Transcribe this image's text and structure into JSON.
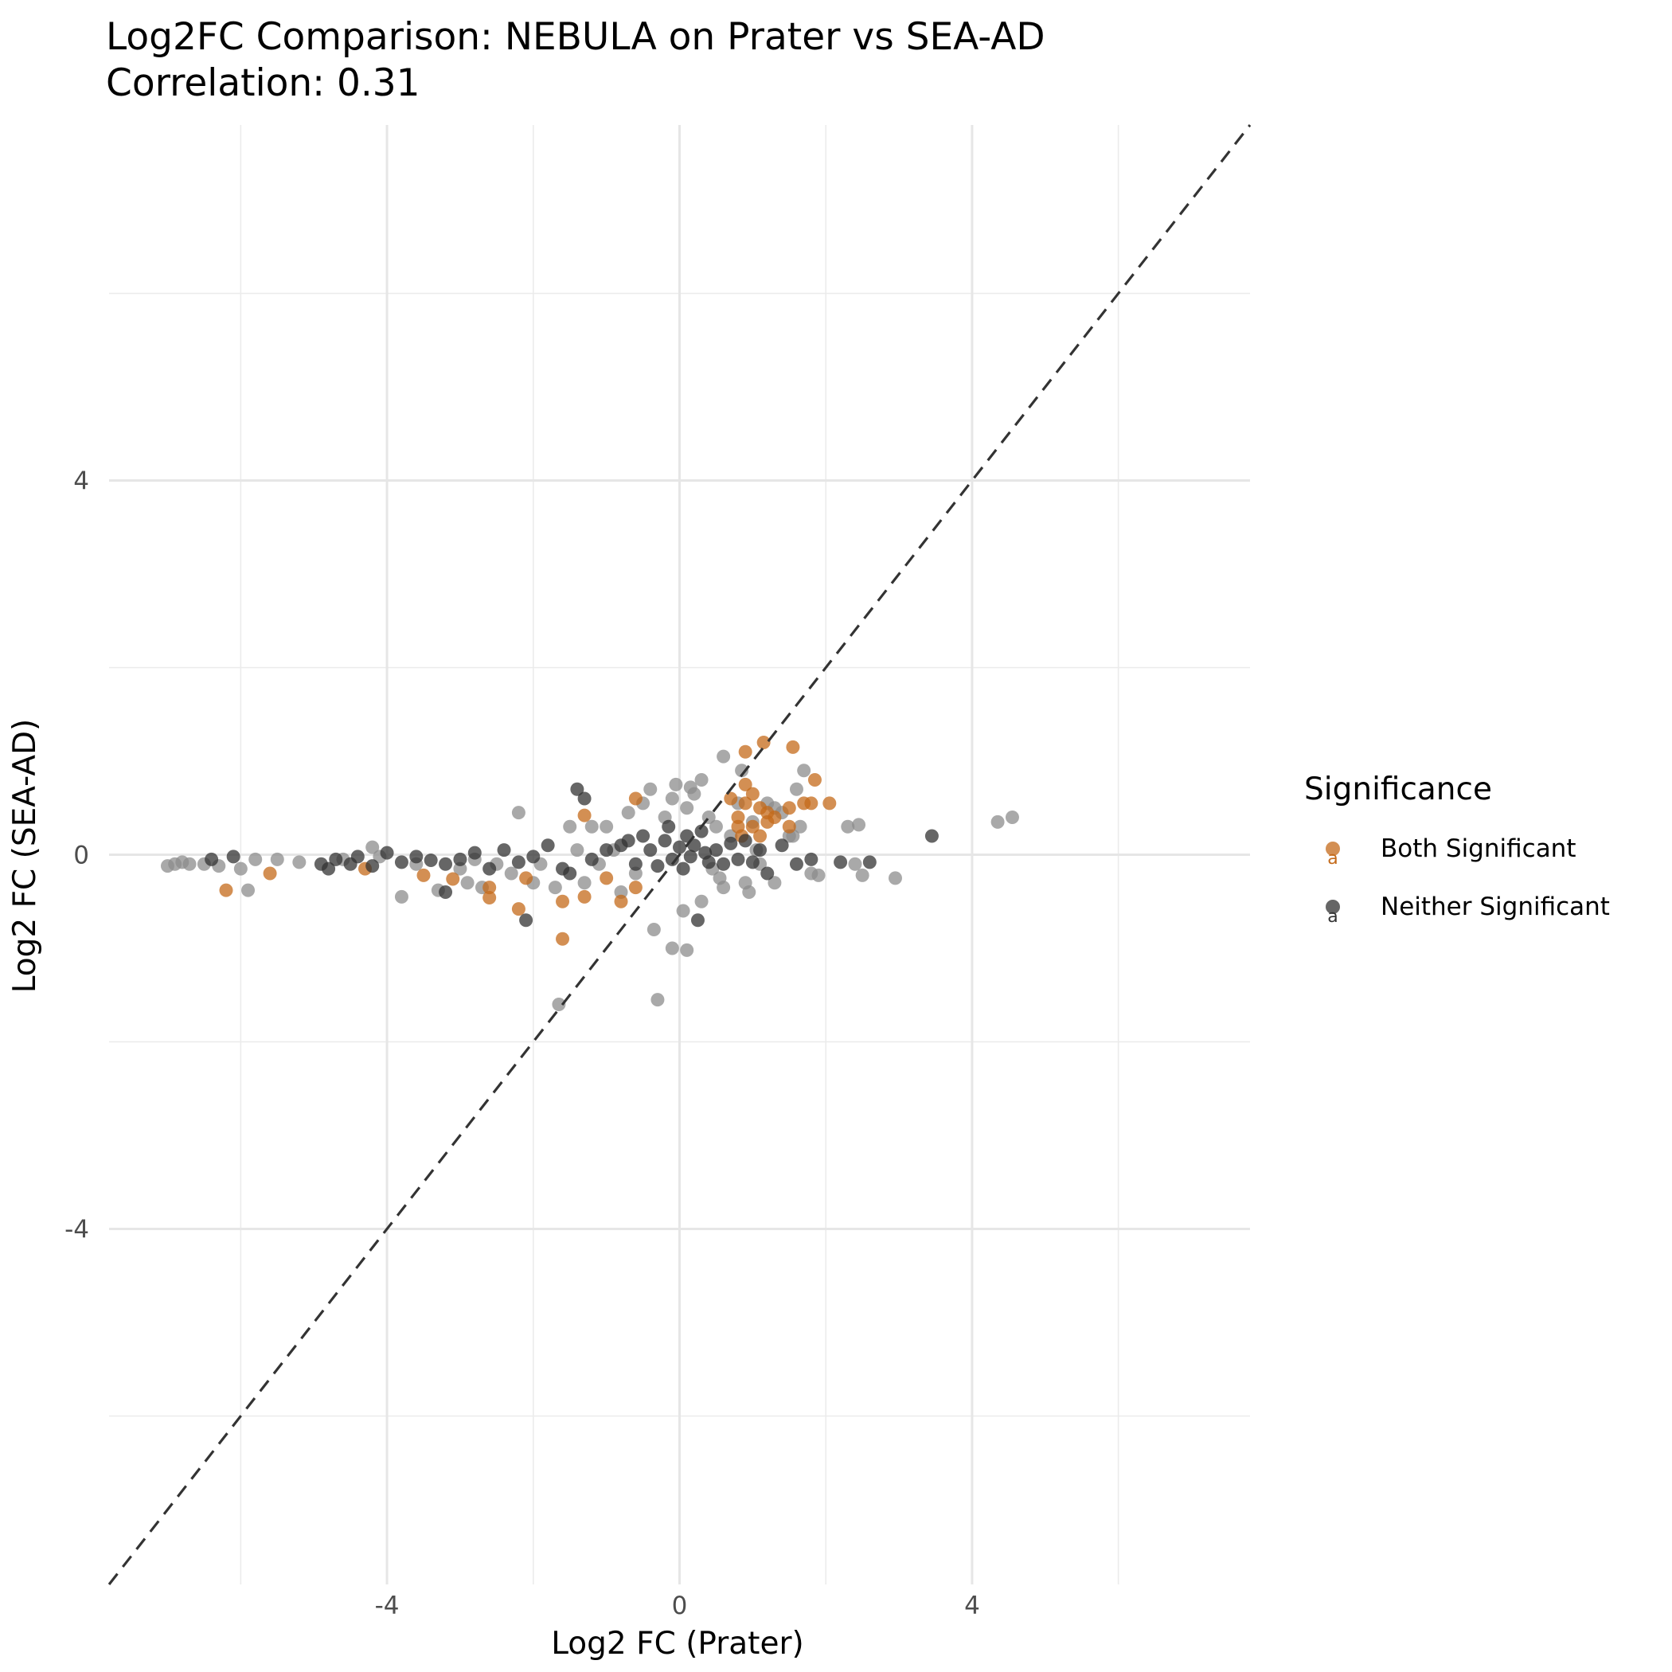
{
  "chart_data": {
    "type": "scatter",
    "title": "Log2FC Comparison: NEBULA on Prater vs SEA-AD",
    "subtitle": "Correlation: 0.31",
    "xlabel": "Log2 FC (Prater)",
    "ylabel": "Log2 FC (SEA-AD)",
    "xlim": [
      -7.8,
      7.8
    ],
    "ylim": [
      -7.8,
      7.8
    ],
    "x_ticks": [
      -4,
      0,
      4
    ],
    "x_tick_labels": [
      "-4",
      "0",
      "4"
    ],
    "y_ticks": [
      -4,
      0,
      4
    ],
    "y_tick_labels": [
      "-4",
      "0",
      "4"
    ],
    "grid": true,
    "reference_line": "y = x (dashed)",
    "legend": {
      "title": "Significance",
      "placement": "right",
      "entries": [
        {
          "label": "Both Significant",
          "color": "#c46a1a"
        },
        {
          "label": "Neither Significant",
          "color": "#333333"
        }
      ]
    },
    "series": [
      {
        "name": "Both Significant",
        "color": "#c46a1a",
        "points": [
          [
            -6.2,
            -0.38
          ],
          [
            -5.6,
            -0.2
          ],
          [
            -4.3,
            -0.15
          ],
          [
            -3.5,
            -0.22
          ],
          [
            -3.1,
            -0.26
          ],
          [
            -2.6,
            -0.46
          ],
          [
            -2.6,
            -0.35
          ],
          [
            -2.2,
            -0.58
          ],
          [
            -2.1,
            -0.25
          ],
          [
            -1.6,
            -0.9
          ],
          [
            -1.6,
            -0.5
          ],
          [
            -1.3,
            -0.45
          ],
          [
            -1.3,
            0.42
          ],
          [
            -1.0,
            -0.25
          ],
          [
            -0.8,
            -0.5
          ],
          [
            -0.6,
            0.6
          ],
          [
            -0.6,
            -0.35
          ],
          [
            0.7,
            0.6
          ],
          [
            0.8,
            0.4
          ],
          [
            0.8,
            0.3
          ],
          [
            0.85,
            0.2
          ],
          [
            0.9,
            0.75
          ],
          [
            0.9,
            0.55
          ],
          [
            0.9,
            1.1
          ],
          [
            1.0,
            0.65
          ],
          [
            1.0,
            0.3
          ],
          [
            1.1,
            0.5
          ],
          [
            1.1,
            0.2
          ],
          [
            1.15,
            1.2
          ],
          [
            1.2,
            0.35
          ],
          [
            1.2,
            0.45
          ],
          [
            1.3,
            0.4
          ],
          [
            1.5,
            0.3
          ],
          [
            1.5,
            0.5
          ],
          [
            1.55,
            1.15
          ],
          [
            1.7,
            0.55
          ],
          [
            1.8,
            0.55
          ],
          [
            1.85,
            0.8
          ],
          [
            2.05,
            0.55
          ]
        ]
      },
      {
        "name": "Neither Significant",
        "color": "#333333",
        "points": [
          [
            -6.4,
            -0.05
          ],
          [
            -6.1,
            -0.02
          ],
          [
            -4.9,
            -0.1
          ],
          [
            -4.8,
            -0.15
          ],
          [
            -4.7,
            -0.05
          ],
          [
            -4.5,
            -0.1
          ],
          [
            -4.4,
            -0.02
          ],
          [
            -4.2,
            -0.12
          ],
          [
            -4.0,
            0.02
          ],
          [
            -3.8,
            -0.08
          ],
          [
            -3.6,
            -0.02
          ],
          [
            -3.4,
            -0.06
          ],
          [
            -3.2,
            -0.1
          ],
          [
            -3.0,
            -0.05
          ],
          [
            -2.8,
            0.02
          ],
          [
            -2.6,
            -0.15
          ],
          [
            -2.4,
            0.05
          ],
          [
            -2.2,
            -0.08
          ],
          [
            -2.0,
            -0.02
          ],
          [
            -1.8,
            0.1
          ],
          [
            -1.6,
            -0.15
          ],
          [
            -1.4,
            0.7
          ],
          [
            -1.3,
            0.6
          ],
          [
            -1.2,
            -0.05
          ],
          [
            -1.0,
            0.05
          ],
          [
            -0.8,
            0.1
          ],
          [
            -0.6,
            -0.1
          ],
          [
            -0.5,
            0.2
          ],
          [
            -0.4,
            0.05
          ],
          [
            -0.3,
            -0.12
          ],
          [
            -0.2,
            0.15
          ],
          [
            -0.1,
            -0.05
          ],
          [
            0.0,
            0.08
          ],
          [
            0.05,
            -0.15
          ],
          [
            0.1,
            0.2
          ],
          [
            0.15,
            -0.02
          ],
          [
            0.2,
            0.1
          ],
          [
            0.25,
            -0.7
          ],
          [
            0.3,
            0.25
          ],
          [
            0.4,
            -0.08
          ],
          [
            0.5,
            0.05
          ],
          [
            0.6,
            -0.1
          ],
          [
            0.7,
            0.12
          ],
          [
            0.8,
            -0.05
          ],
          [
            0.9,
            0.15
          ],
          [
            1.0,
            -0.08
          ],
          [
            1.1,
            0.05
          ],
          [
            1.2,
            -0.2
          ],
          [
            1.4,
            0.1
          ],
          [
            1.6,
            -0.1
          ],
          [
            1.8,
            -0.05
          ],
          [
            2.2,
            -0.08
          ],
          [
            2.6,
            -0.08
          ],
          [
            3.45,
            0.2
          ],
          [
            -2.1,
            -0.7
          ],
          [
            -3.2,
            -0.4
          ],
          [
            -1.5,
            -0.2
          ],
          [
            -0.7,
            0.15
          ],
          [
            0.35,
            0.02
          ],
          [
            -0.15,
            0.3
          ]
        ]
      },
      {
        "name": "",
        "color": "#8c8c8c",
        "points": [
          [
            -7.0,
            -0.12
          ],
          [
            -6.9,
            -0.1
          ],
          [
            -6.8,
            -0.08
          ],
          [
            -6.7,
            -0.1
          ],
          [
            -6.5,
            -0.1
          ],
          [
            -6.3,
            -0.12
          ],
          [
            -6.0,
            -0.15
          ],
          [
            -5.9,
            -0.38
          ],
          [
            -5.8,
            -0.05
          ],
          [
            -5.5,
            -0.05
          ],
          [
            -5.2,
            -0.08
          ],
          [
            -4.6,
            -0.05
          ],
          [
            -4.2,
            0.08
          ],
          [
            -3.8,
            -0.45
          ],
          [
            -3.6,
            -0.1
          ],
          [
            -3.3,
            -0.38
          ],
          [
            -3.0,
            -0.15
          ],
          [
            -2.9,
            -0.3
          ],
          [
            -2.7,
            -0.35
          ],
          [
            -2.5,
            -0.1
          ],
          [
            -2.3,
            -0.2
          ],
          [
            -2.2,
            0.45
          ],
          [
            -2.0,
            -0.3
          ],
          [
            -1.9,
            -0.1
          ],
          [
            -1.7,
            -0.35
          ],
          [
            -1.65,
            -1.6
          ],
          [
            -1.5,
            0.3
          ],
          [
            -1.4,
            0.05
          ],
          [
            -1.2,
            0.3
          ],
          [
            -1.1,
            -0.1
          ],
          [
            -1.0,
            0.3
          ],
          [
            -0.9,
            0.05
          ],
          [
            -0.8,
            -0.4
          ],
          [
            -0.7,
            0.45
          ],
          [
            -0.5,
            0.55
          ],
          [
            -0.4,
            0.7
          ],
          [
            -0.35,
            -0.8
          ],
          [
            -0.3,
            -1.55
          ],
          [
            -0.2,
            0.4
          ],
          [
            -0.1,
            0.6
          ],
          [
            -0.1,
            -1.0
          ],
          [
            -0.05,
            0.75
          ],
          [
            0.05,
            -0.6
          ],
          [
            0.1,
            0.5
          ],
          [
            0.1,
            -1.02
          ],
          [
            0.15,
            0.72
          ],
          [
            0.2,
            0.65
          ],
          [
            0.3,
            0.8
          ],
          [
            0.3,
            -0.5
          ],
          [
            0.4,
            0.4
          ],
          [
            0.45,
            -0.15
          ],
          [
            0.5,
            0.3
          ],
          [
            0.55,
            -0.25
          ],
          [
            0.6,
            1.05
          ],
          [
            0.7,
            0.2
          ],
          [
            0.8,
            0.55
          ],
          [
            0.85,
            0.9
          ],
          [
            0.9,
            -0.3
          ],
          [
            0.95,
            -0.4
          ],
          [
            1.0,
            0.35
          ],
          [
            1.1,
            -0.1
          ],
          [
            1.2,
            0.55
          ],
          [
            1.3,
            0.5
          ],
          [
            1.3,
            -0.3
          ],
          [
            1.4,
            0.45
          ],
          [
            1.5,
            0.2
          ],
          [
            1.55,
            0.2
          ],
          [
            1.6,
            0.7
          ],
          [
            1.65,
            0.3
          ],
          [
            1.7,
            0.9
          ],
          [
            1.8,
            -0.2
          ],
          [
            1.9,
            -0.22
          ],
          [
            2.3,
            0.3
          ],
          [
            2.4,
            -0.1
          ],
          [
            2.45,
            0.32
          ],
          [
            2.5,
            -0.22
          ],
          [
            2.95,
            -0.25
          ],
          [
            4.35,
            0.35
          ],
          [
            4.55,
            0.4
          ],
          [
            -4.1,
            -0.02
          ],
          [
            -2.8,
            -0.05
          ],
          [
            -1.3,
            -0.3
          ],
          [
            0.6,
            -0.35
          ],
          [
            -0.6,
            -0.2
          ],
          [
            1.05,
            0.05
          ]
        ]
      }
    ]
  }
}
